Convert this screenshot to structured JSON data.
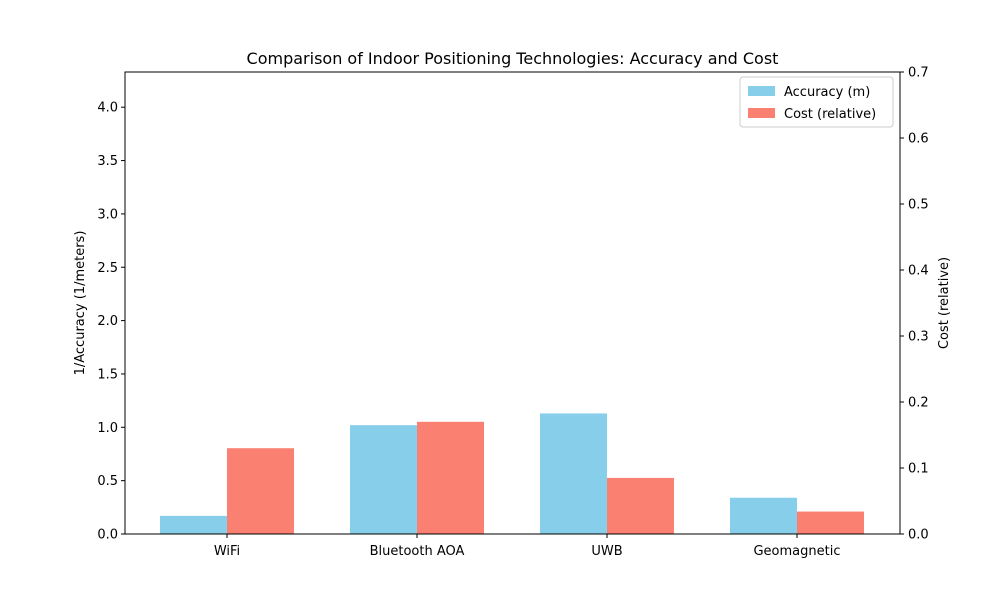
{
  "chart_data": {
    "type": "bar",
    "title": "Comparison of Indoor Positioning Technologies: Accuracy and Cost",
    "categories": [
      "WiFi",
      "Bluetooth AOA",
      "UWB",
      "Geomagnetic"
    ],
    "y_left": {
      "label": "1/Accuracy (1/meters)",
      "range": [
        0,
        4.33
      ],
      "ticks": [
        "0.0",
        "0.5",
        "1.0",
        "1.5",
        "2.0",
        "2.5",
        "3.0",
        "3.5",
        "4.0"
      ],
      "tick_values": [
        0,
        0.5,
        1.0,
        1.5,
        2.0,
        2.5,
        3.0,
        3.5,
        4.0
      ]
    },
    "y_right": {
      "label": "Cost (relative)",
      "range": [
        0,
        0.7
      ],
      "ticks": [
        "0.0",
        "0.1",
        "0.2",
        "0.3",
        "0.4",
        "0.5",
        "0.6",
        "0.7"
      ],
      "tick_values": [
        0,
        0.1,
        0.2,
        0.3,
        0.4,
        0.5,
        0.6,
        0.7
      ]
    },
    "series": [
      {
        "name": "Accuracy (m)",
        "axis": "left",
        "color": "#87CEEB",
        "values": [
          0.17,
          1.02,
          1.13,
          0.34
        ]
      },
      {
        "name": "Cost (relative)",
        "axis": "right",
        "color": "#FA8072",
        "values": [
          0.13,
          0.17,
          0.085,
          0.034
        ]
      }
    ],
    "legend": "top-right",
    "grid": false
  }
}
